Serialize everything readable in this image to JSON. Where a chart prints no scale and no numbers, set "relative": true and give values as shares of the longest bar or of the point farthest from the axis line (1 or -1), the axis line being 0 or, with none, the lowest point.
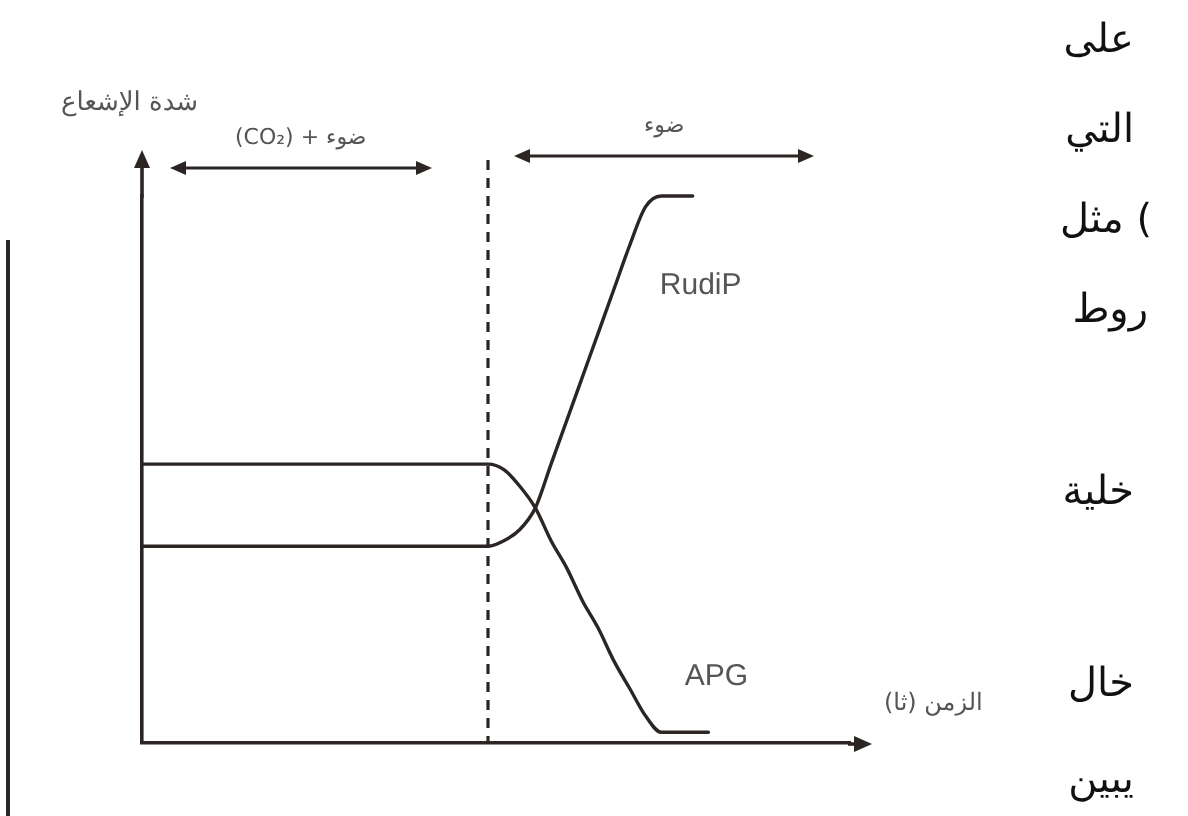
{
  "chart_data": {
    "type": "line",
    "relative": true,
    "xlabel": "الزمن (ثا)",
    "ylabel": "شدة الإشعاع",
    "marker": "none",
    "categories": [
      null,
      null,
      null,
      null,
      null,
      null,
      null,
      null,
      null,
      null,
      null,
      null,
      null,
      null,
      null,
      null,
      null,
      null,
      null,
      null,
      null,
      null,
      null,
      null,
      null,
      null,
      null,
      null,
      null,
      null,
      null,
      null,
      null,
      null,
      null,
      null,
      null,
      null,
      null,
      null,
      null,
      null,
      null,
      null,
      null,
      null
    ],
    "series": [
      {
        "name": "RudiP",
        "color": "#2b2523",
        "values": [
          0.36,
          0.36,
          0.36,
          0.36,
          0.36,
          0.36,
          0.36,
          0.36,
          0.36,
          0.36,
          0.36,
          0.36,
          0.36,
          0.36,
          0.36,
          0.36,
          0.36,
          0.36,
          0.36,
          0.36,
          0.36,
          0.36,
          0.36,
          0.37,
          0.39,
          0.43,
          0.51,
          0.59,
          0.67,
          0.75,
          0.83,
          0.91,
          0.98,
          1,
          1,
          1,
          null,
          null,
          null,
          null,
          null,
          null,
          null,
          null,
          null,
          null
        ]
      },
      {
        "name": "APG",
        "color": "#2b2523",
        "values": [
          0.51,
          0.51,
          0.51,
          0.51,
          0.51,
          0.51,
          0.51,
          0.51,
          0.51,
          0.51,
          0.51,
          0.51,
          0.51,
          0.51,
          0.51,
          0.51,
          0.51,
          0.51,
          0.51,
          0.51,
          0.51,
          0.51,
          0.51,
          0.5,
          0.47,
          0.43,
          0.37,
          0.32,
          0.26,
          0.21,
          0.15,
          0.1,
          0.05,
          0.02,
          0.02,
          0.02,
          0.02,
          null,
          null,
          null,
          null,
          null,
          null,
          null,
          null,
          null
        ]
      }
    ],
    "annotations": [
      "ضوء + (CO₂)",
      "ضوء",
      "على",
      "التي",
      ") مثل",
      "روط",
      "خلية",
      "خال",
      "يبين"
    ]
  }
}
